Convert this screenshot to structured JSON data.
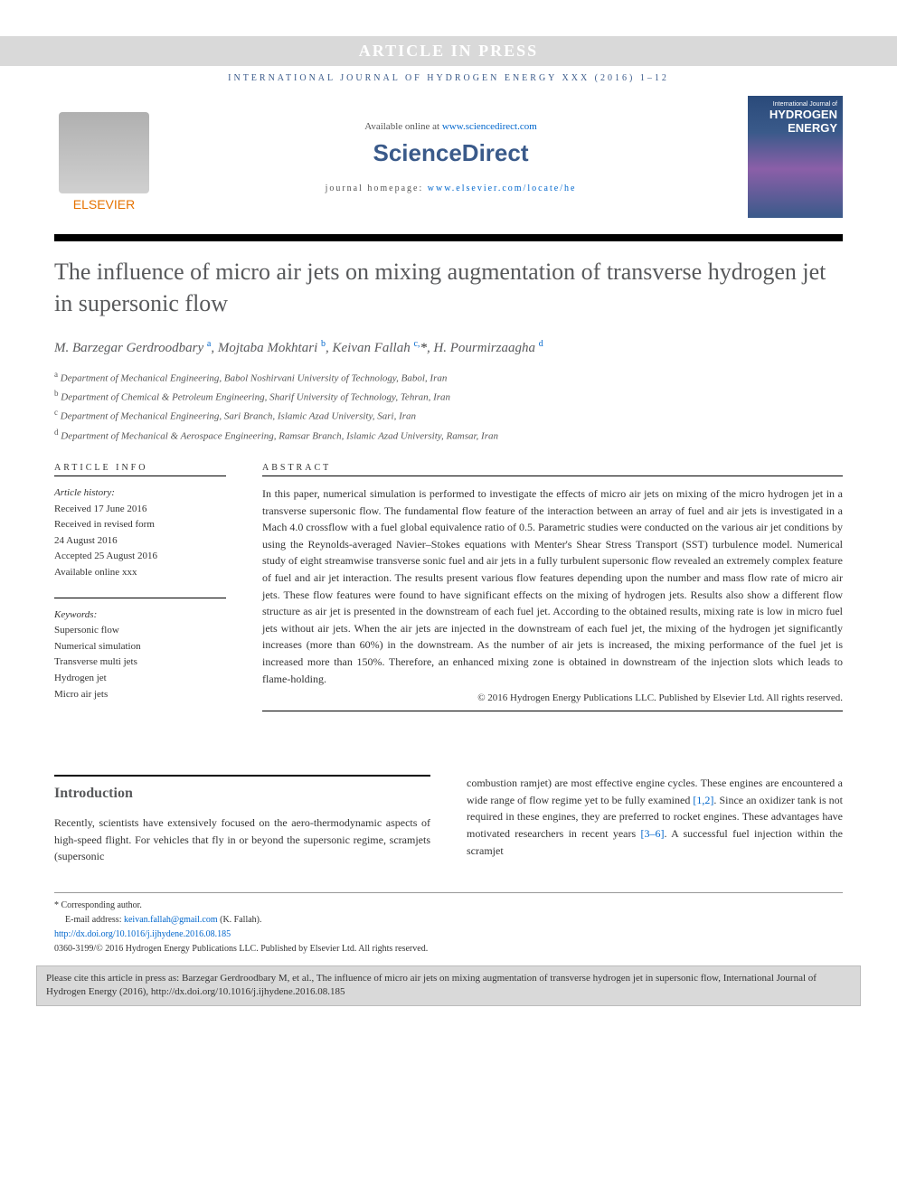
{
  "top_banner": "ARTICLE IN PRESS",
  "journal_header": "INTERNATIONAL JOURNAL OF HYDROGEN ENERGY XXX (2016) 1–12",
  "header": {
    "available_prefix": "Available online at ",
    "available_link": "www.sciencedirect.com",
    "sciencedirect": "ScienceDirect",
    "homepage_prefix": "journal homepage: ",
    "homepage_link": "www.elsevier.com/locate/he",
    "elsevier_label": "ELSEVIER",
    "cover": {
      "line1": "International Journal of",
      "line2": "HYDROGEN",
      "line3": "ENERGY"
    }
  },
  "title": "The influence of micro air jets on mixing augmentation of transverse hydrogen jet in supersonic flow",
  "authors_html": "M. Barzegar Gerdroodbary <sup>a</sup>, Mojtaba Mokhtari <sup>b</sup>, Keivan Fallah <sup>c,</sup><span class='star'>*</span>, H. Pourmirzaagha <sup>d</sup>",
  "affiliations": [
    {
      "sup": "a",
      "text": "Department of Mechanical Engineering, Babol Noshirvani University of Technology, Babol, Iran"
    },
    {
      "sup": "b",
      "text": "Department of Chemical & Petroleum Engineering, Sharif University of Technology, Tehran, Iran"
    },
    {
      "sup": "c",
      "text": "Department of Mechanical Engineering, Sari Branch, Islamic Azad University, Sari, Iran"
    },
    {
      "sup": "d",
      "text": "Department of Mechanical & Aerospace Engineering, Ramsar Branch, Islamic Azad University, Ramsar, Iran"
    }
  ],
  "article_info_label": "ARTICLE INFO",
  "abstract_label": "ABSTRACT",
  "history": {
    "heading": "Article history:",
    "lines": [
      "Received 17 June 2016",
      "Received in revised form",
      "24 August 2016",
      "Accepted 25 August 2016",
      "Available online xxx"
    ]
  },
  "keywords": {
    "heading": "Keywords:",
    "items": [
      "Supersonic flow",
      "Numerical simulation",
      "Transverse multi jets",
      "Hydrogen jet",
      "Micro air jets"
    ]
  },
  "abstract": "In this paper, numerical simulation is performed to investigate the effects of micro air jets on mixing of the micro hydrogen jet in a transverse supersonic flow. The fundamental flow feature of the interaction between an array of fuel and air jets is investigated in a Mach 4.0 crossflow with a fuel global equivalence ratio of 0.5. Parametric studies were conducted on the various air jet conditions by using the Reynolds-averaged Navier–Stokes equations with Menter's Shear Stress Transport (SST) turbulence model. Numerical study of eight streamwise transverse sonic fuel and air jets in a fully turbulent supersonic flow revealed an extremely complex feature of fuel and air jet interaction. The results present various flow features depending upon the number and mass flow rate of micro air jets. These flow features were found to have significant effects on the mixing of hydrogen jets. Results also show a different flow structure as air jet is presented in the downstream of each fuel jet. According to the obtained results, mixing rate is low in micro fuel jets without air jets. When the air jets are injected in the downstream of each fuel jet, the mixing of the hydrogen jet significantly increases (more than 60%) in the downstream. As the number of air jets is increased, the mixing performance of the fuel jet is increased more than 150%. Therefore, an enhanced mixing zone is obtained in downstream of the injection slots which leads to flame-holding.",
  "copyright": "© 2016 Hydrogen Energy Publications LLC. Published by Elsevier Ltd. All rights reserved.",
  "intro": {
    "heading": "Introduction",
    "col1": "Recently, scientists have extensively focused on the aero-thermodynamic aspects of high-speed flight. For vehicles that fly in or beyond the supersonic regime, scramjets (supersonic",
    "col2_pre": "combustion ramjet) are most effective engine cycles. These engines are encountered a wide range of flow regime yet to be fully examined ",
    "ref1": "[1,2]",
    "col2_mid": ". Since an oxidizer tank is not required in these engines, they are preferred to rocket engines. These advantages have motivated researchers in recent years ",
    "ref2": "[3–6]",
    "col2_end": ". A successful fuel injection within the scramjet"
  },
  "footer": {
    "corresponding": "* Corresponding author.",
    "email_label": "E-mail address: ",
    "email": "keivan.fallah@gmail.com",
    "email_suffix": " (K. Fallah).",
    "doi": "http://dx.doi.org/10.1016/j.ijhydene.2016.08.185",
    "issn_line": "0360-3199/© 2016 Hydrogen Energy Publications LLC. Published by Elsevier Ltd. All rights reserved."
  },
  "cite_box": "Please cite this article in press as: Barzegar Gerdroodbary M, et al., The influence of micro air jets on mixing augmentation of transverse hydrogen jet in supersonic flow, International Journal of Hydrogen Energy (2016), http://dx.doi.org/10.1016/j.ijhydene.2016.08.185",
  "colors": {
    "banner_bg": "#d9d9d9",
    "banner_text": "#ffffff",
    "journal_blue": "#3a5a8a",
    "link_blue": "#0066cc",
    "elsevier_orange": "#e57200",
    "title_gray": "#58595b",
    "text_color": "#333333",
    "cite_bg": "#d9d9d9"
  }
}
